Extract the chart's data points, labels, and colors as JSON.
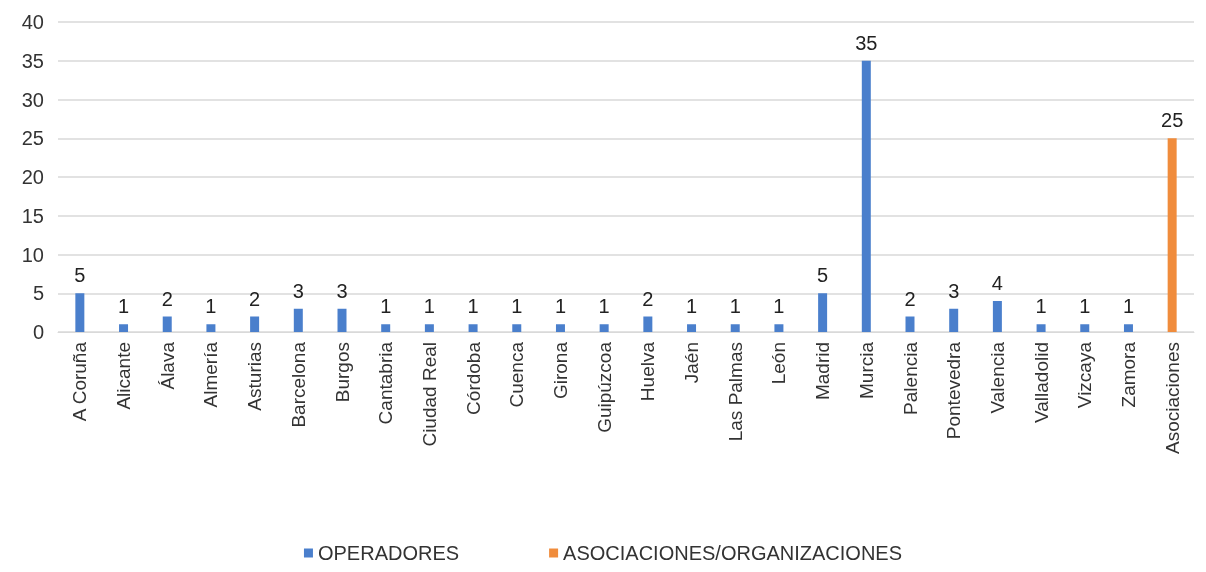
{
  "chart_data": {
    "type": "bar",
    "categories": [
      "A Coruña",
      "Alicante",
      "Álava",
      "Almería",
      "Asturias",
      "Barcelona",
      "Burgos",
      "Cantabria",
      "Ciudad Real",
      "Córdoba",
      "Cuenca",
      "Girona",
      "Guipúzcoa",
      "Huelva",
      "Jaén",
      "Las Palmas",
      "León",
      "Madrid",
      "Murcia",
      "Palencia",
      "Pontevedra",
      "Valencia",
      "Valladolid",
      "Vizcaya",
      "Zamora",
      "Asociaciones"
    ],
    "series": [
      {
        "name": "OPERADORES",
        "color": "#4a7fcc",
        "values": [
          5,
          1,
          2,
          1,
          2,
          3,
          3,
          1,
          1,
          1,
          1,
          1,
          1,
          2,
          1,
          1,
          1,
          5,
          35,
          2,
          3,
          4,
          1,
          1,
          1,
          null
        ]
      },
      {
        "name": "ASOCIACIONES/ORGANIZACIONES",
        "color": "#f08c3c",
        "values": [
          null,
          null,
          null,
          null,
          null,
          null,
          null,
          null,
          null,
          null,
          null,
          null,
          null,
          null,
          null,
          null,
          null,
          null,
          null,
          null,
          null,
          null,
          null,
          null,
          null,
          25
        ]
      }
    ],
    "ylim": [
      0,
      40
    ],
    "yticks": [
      0,
      5,
      10,
      15,
      20,
      25,
      30,
      35,
      40
    ],
    "grid": "y",
    "legend": "bottom",
    "data_labels": true
  }
}
